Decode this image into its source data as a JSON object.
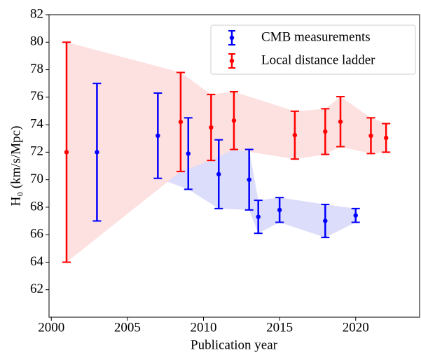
{
  "chart_data": {
    "type": "errorbar",
    "x_label": "Publication year",
    "y_label": "H₀ (km/s/Mpc)",
    "xlim": [
      1999.85,
      2024.2
    ],
    "xticks": [
      2000,
      2005,
      2010,
      2015,
      2020
    ],
    "ylim": [
      60,
      82
    ],
    "yticks": [
      62,
      64,
      66,
      68,
      70,
      72,
      74,
      76,
      78,
      80,
      82
    ],
    "legend": "upper right",
    "band": true,
    "series": [
      {
        "name": "CMB measurements",
        "color": "#0000ff",
        "band_color": "#dcdcfb",
        "x": [
          2003,
          2007,
          2009,
          2011,
          2013,
          2013.6,
          2015,
          2018,
          2020
        ],
        "values": [
          72,
          73.2,
          71.9,
          70.4,
          70.0,
          67.3,
          67.8,
          67.0,
          67.4
        ],
        "errors": [
          5,
          3.1,
          2.6,
          2.5,
          2.2,
          1.2,
          0.9,
          1.2,
          0.5
        ]
      },
      {
        "name": "Local distance ladder",
        "color": "#ff0000",
        "band_color": "#fde0e0",
        "x": [
          2001,
          2008.5,
          2010.5,
          2012,
          2016,
          2018,
          2019,
          2021,
          2022
        ],
        "values": [
          72,
          74.2,
          73.8,
          74.3,
          73.24,
          73.5,
          74.22,
          73.2,
          73.04
        ],
        "errors": [
          8,
          3.6,
          2.4,
          2.1,
          1.74,
          1.66,
          1.82,
          1.3,
          1.04
        ]
      }
    ]
  }
}
